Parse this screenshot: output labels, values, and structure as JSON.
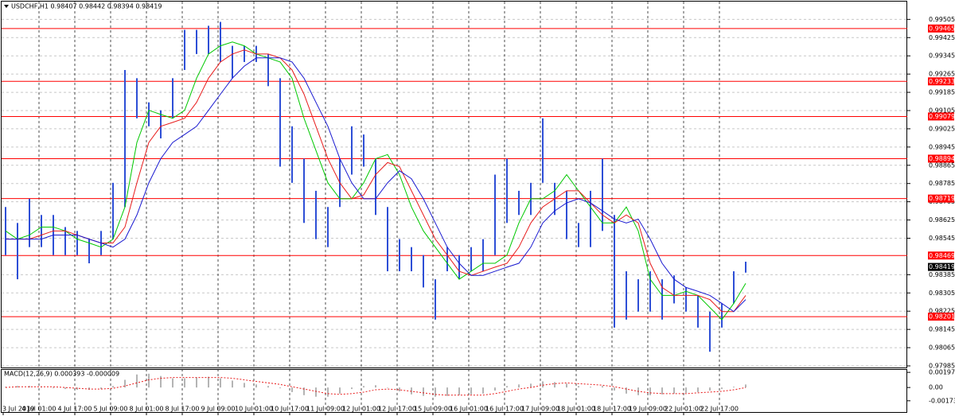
{
  "chart_data": {
    "type": "ohlc_bar",
    "title": "USDCHF,H1  0.98407 0.98442 0.98394 0.98419",
    "categories": [
      "3 Jul 2019",
      null,
      null,
      "4 Jul 01:00",
      null,
      null,
      "4 Jul 17:00",
      null,
      null,
      "5 Jul 09:00",
      null,
      null,
      "8 Jul 01:00",
      null,
      null,
      "8 Jul 17:00",
      null,
      null,
      "9 Jul 09:00",
      null,
      null,
      "10 Jul 01:00",
      null,
      null,
      "10 Jul 17:00",
      null,
      null,
      "11 Jul 09:00",
      null,
      null,
      "12 Jul 01:00",
      null,
      null,
      "12 Jul 17:00",
      null,
      null,
      "15 Jul 09:00",
      null,
      null,
      "16 Jul 01:00",
      null,
      null,
      "16 Jul 17:00",
      null,
      null,
      "17 Jul 09:00",
      null,
      null,
      "18 Jul 01:00",
      null,
      null,
      "18 Jul 17:00",
      null,
      null,
      "19 Jul 09:00",
      null,
      null,
      "22 Jul 01:00",
      null,
      null,
      "22 Jul 17:00",
      null,
      null
    ],
    "high": [
      0.98682,
      0.98612,
      0.98718,
      0.98647,
      0.98647,
      0.98594,
      0.98577,
      0.98541,
      0.98577,
      0.98788,
      0.99283,
      0.99247,
      0.99141,
      0.99106,
      0.99247,
      0.99459,
      0.99459,
      0.99477,
      0.99494,
      0.99389,
      0.99389,
      0.99389,
      0.99353,
      0.99247,
      0.99036,
      0.98894,
      0.98753,
      0.98682,
      0.98894,
      0.99036,
      0.99,
      0.98894,
      0.98682,
      0.98541,
      0.98506,
      0.98471,
      0.98365,
      0.98506,
      0.98471,
      0.98506,
      0.98541,
      0.98824,
      0.98894,
      0.98753,
      0.98788,
      0.99071,
      0.98788,
      0.98753,
      0.98612,
      0.98753,
      0.98894,
      0.98647,
      0.984,
      0.98365,
      0.984,
      0.98365,
      0.98382,
      0.98329,
      0.98294,
      0.98223,
      0.98259,
      0.984,
      0.98442
    ],
    "low": [
      0.98471,
      0.98365,
      0.98506,
      0.98506,
      0.98471,
      0.98471,
      0.98471,
      0.98435,
      0.98471,
      0.98541,
      0.98682,
      0.99071,
      0.99036,
      0.98983,
      0.99071,
      0.99283,
      0.99353,
      0.99353,
      0.99318,
      0.99247,
      0.99318,
      0.99318,
      0.99212,
      0.98859,
      0.98788,
      0.98612,
      0.98541,
      0.98506,
      0.98682,
      0.98824,
      0.98859,
      0.98647,
      0.984,
      0.984,
      0.984,
      0.98329,
      0.98188,
      0.984,
      0.98365,
      0.984,
      0.984,
      0.98471,
      0.98612,
      0.98647,
      0.98647,
      0.98788,
      0.98647,
      0.98541,
      0.98506,
      0.98506,
      0.98577,
      0.98153,
      0.98188,
      0.98223,
      0.98223,
      0.98188,
      0.98259,
      0.98223,
      0.98153,
      0.98047,
      0.98153,
      0.98259,
      0.98394
    ],
    "color": "#2e4fd6",
    "series": [
      {
        "color": "#00c800",
        "values": [
          0.98577,
          0.98541,
          0.98559,
          0.98594,
          0.98594,
          0.98577,
          0.98541,
          0.98524,
          0.98506,
          0.98541,
          0.98682,
          0.98965,
          0.99106,
          0.99088,
          0.99071,
          0.99106,
          0.99247,
          0.99353,
          0.99389,
          0.99406,
          0.99389,
          0.99353,
          0.99336,
          0.99318,
          0.99247,
          0.99071,
          0.9893,
          0.98788,
          0.98718,
          0.98718,
          0.98788,
          0.98894,
          0.98912,
          0.98824,
          0.98682,
          0.98577,
          0.98506,
          0.98435,
          0.98365,
          0.984,
          0.98435,
          0.98435,
          0.98471,
          0.98612,
          0.98718,
          0.98718,
          0.98753,
          0.98824,
          0.98753,
          0.98682,
          0.98612,
          0.98612,
          0.98682,
          0.98577,
          0.98365,
          0.98294,
          0.98294,
          0.98312,
          0.98294,
          0.98241,
          0.98188,
          0.98259,
          0.98347
        ]
      },
      {
        "color": "#e81c1c",
        "values": [
          0.98541,
          0.98541,
          0.98541,
          0.98559,
          0.98577,
          0.98577,
          0.98559,
          0.98541,
          0.98524,
          0.98524,
          0.98594,
          0.98788,
          0.98965,
          0.99036,
          0.99053,
          0.99071,
          0.99141,
          0.99247,
          0.99318,
          0.99353,
          0.99371,
          0.99353,
          0.99353,
          0.99336,
          0.99283,
          0.99177,
          0.99036,
          0.98894,
          0.98788,
          0.98718,
          0.98735,
          0.98824,
          0.98877,
          0.98859,
          0.98753,
          0.98647,
          0.98541,
          0.98471,
          0.984,
          0.98382,
          0.984,
          0.98418,
          0.98435,
          0.98506,
          0.98612,
          0.98682,
          0.98718,
          0.98753,
          0.98753,
          0.987,
          0.98647,
          0.98612,
          0.98647,
          0.98612,
          0.98435,
          0.98329,
          0.98294,
          0.98294,
          0.98294,
          0.98276,
          0.98223,
          0.98223,
          0.98294
        ]
      },
      {
        "color": "#1a1ad0",
        "values": [
          0.98541,
          0.98541,
          0.98541,
          0.98541,
          0.98559,
          0.98559,
          0.98559,
          0.98541,
          0.98524,
          0.98506,
          0.98541,
          0.98647,
          0.98788,
          0.98894,
          0.98965,
          0.99,
          0.99036,
          0.99106,
          0.99177,
          0.99247,
          0.993,
          0.99336,
          0.99336,
          0.99336,
          0.99318,
          0.99247,
          0.99141,
          0.99036,
          0.98894,
          0.98788,
          0.98718,
          0.98718,
          0.98788,
          0.98841,
          0.98806,
          0.98718,
          0.98612,
          0.98506,
          0.98435,
          0.98382,
          0.98382,
          0.984,
          0.98418,
          0.98435,
          0.98506,
          0.98612,
          0.98665,
          0.987,
          0.98718,
          0.987,
          0.98665,
          0.98629,
          0.98612,
          0.98629,
          0.98541,
          0.98435,
          0.98365,
          0.98329,
          0.98312,
          0.98294,
          0.98259,
          0.98223,
          0.98276
        ]
      }
    ],
    "ylim": [
      0.97978,
      0.99583
    ],
    "yticks": [
      0.99505,
      0.99425,
      0.99345,
      0.99265,
      0.99185,
      0.99105,
      0.99025,
      0.98945,
      0.98865,
      0.98785,
      0.98705,
      0.98625,
      0.98545,
      0.98385,
      0.98305,
      0.98225,
      0.98145,
      0.98065,
      0.97985
    ],
    "grid": true,
    "hlines": [
      0.99465,
      0.99233,
      0.99079,
      0.98894,
      0.98719,
      0.98469,
      0.98201
    ],
    "hline_color": "#ff0000",
    "current_price": 0.98419,
    "macd": {
      "title": "MACD(12,26,9) 0.000393 -0.000009",
      "values": [
        0.0001,
        0.0002,
        0.0002,
        0.0001,
        -0.0001,
        -0.0002,
        -0.0003,
        -0.0003,
        -0.0002,
        0.0002,
        0.001,
        0.0017,
        0.0018,
        0.0015,
        0.0012,
        0.0012,
        0.0013,
        0.0014,
        0.0012,
        0.0009,
        0.0006,
        0.0004,
        0.0002,
        -0.0001,
        -0.0006,
        -0.001,
        -0.0012,
        -0.0012,
        -0.0008,
        -0.0002,
        0.0002,
        0.0003,
        0,
        -0.0005,
        -0.0009,
        -0.0011,
        -0.0012,
        -0.0011,
        -0.001,
        -0.0009,
        -0.0008,
        -0.0004,
        0.0002,
        0.0004,
        0.0005,
        0.0008,
        0.0007,
        0.0005,
        0.0002,
        0.0001,
        0.0002,
        -0.0004,
        -0.0008,
        -0.001,
        -0.001,
        -0.0009,
        -0.0008,
        -0.0007,
        -0.0006,
        -0.0004,
        -0.0002,
        0.0001,
        0.000393
      ],
      "signal": [
        0,
        0.0001,
        0.0001,
        0.0001,
        0.0001,
        0,
        -0.0001,
        -0.0002,
        -0.0002,
        -0.0001,
        0.0002,
        0.0006,
        0.001,
        0.0012,
        0.0013,
        0.0013,
        0.0013,
        0.0013,
        0.0013,
        0.0012,
        0.001,
        0.0008,
        0.0006,
        0.0004,
        0.0001,
        -0.0002,
        -0.0005,
        -0.0008,
        -0.0009,
        -0.0008,
        -0.0006,
        -0.0003,
        -0.0002,
        -0.0003,
        -0.0005,
        -0.0007,
        -0.0009,
        -0.001,
        -0.001,
        -0.001,
        -0.001,
        -0.0008,
        -0.0005,
        -0.0002,
        0,
        0.0003,
        0.0005,
        0.0006,
        0.0005,
        0.0004,
        0.0003,
        0.0001,
        -0.0002,
        -0.0005,
        -0.0007,
        -0.0008,
        -0.0008,
        -0.0008,
        -0.0007,
        -0.0006,
        -0.0005,
        -0.0003,
        -9e-06
      ],
      "hist_color": "#b4b4b4",
      "signal_color": "#e81c1c",
      "ylim": [
        -0.0032,
        0.0023
      ],
      "yticks": [
        0.001975,
        {
          "value": 0,
          "label": "0.00"
        },
        -0.001731
      ]
    }
  }
}
